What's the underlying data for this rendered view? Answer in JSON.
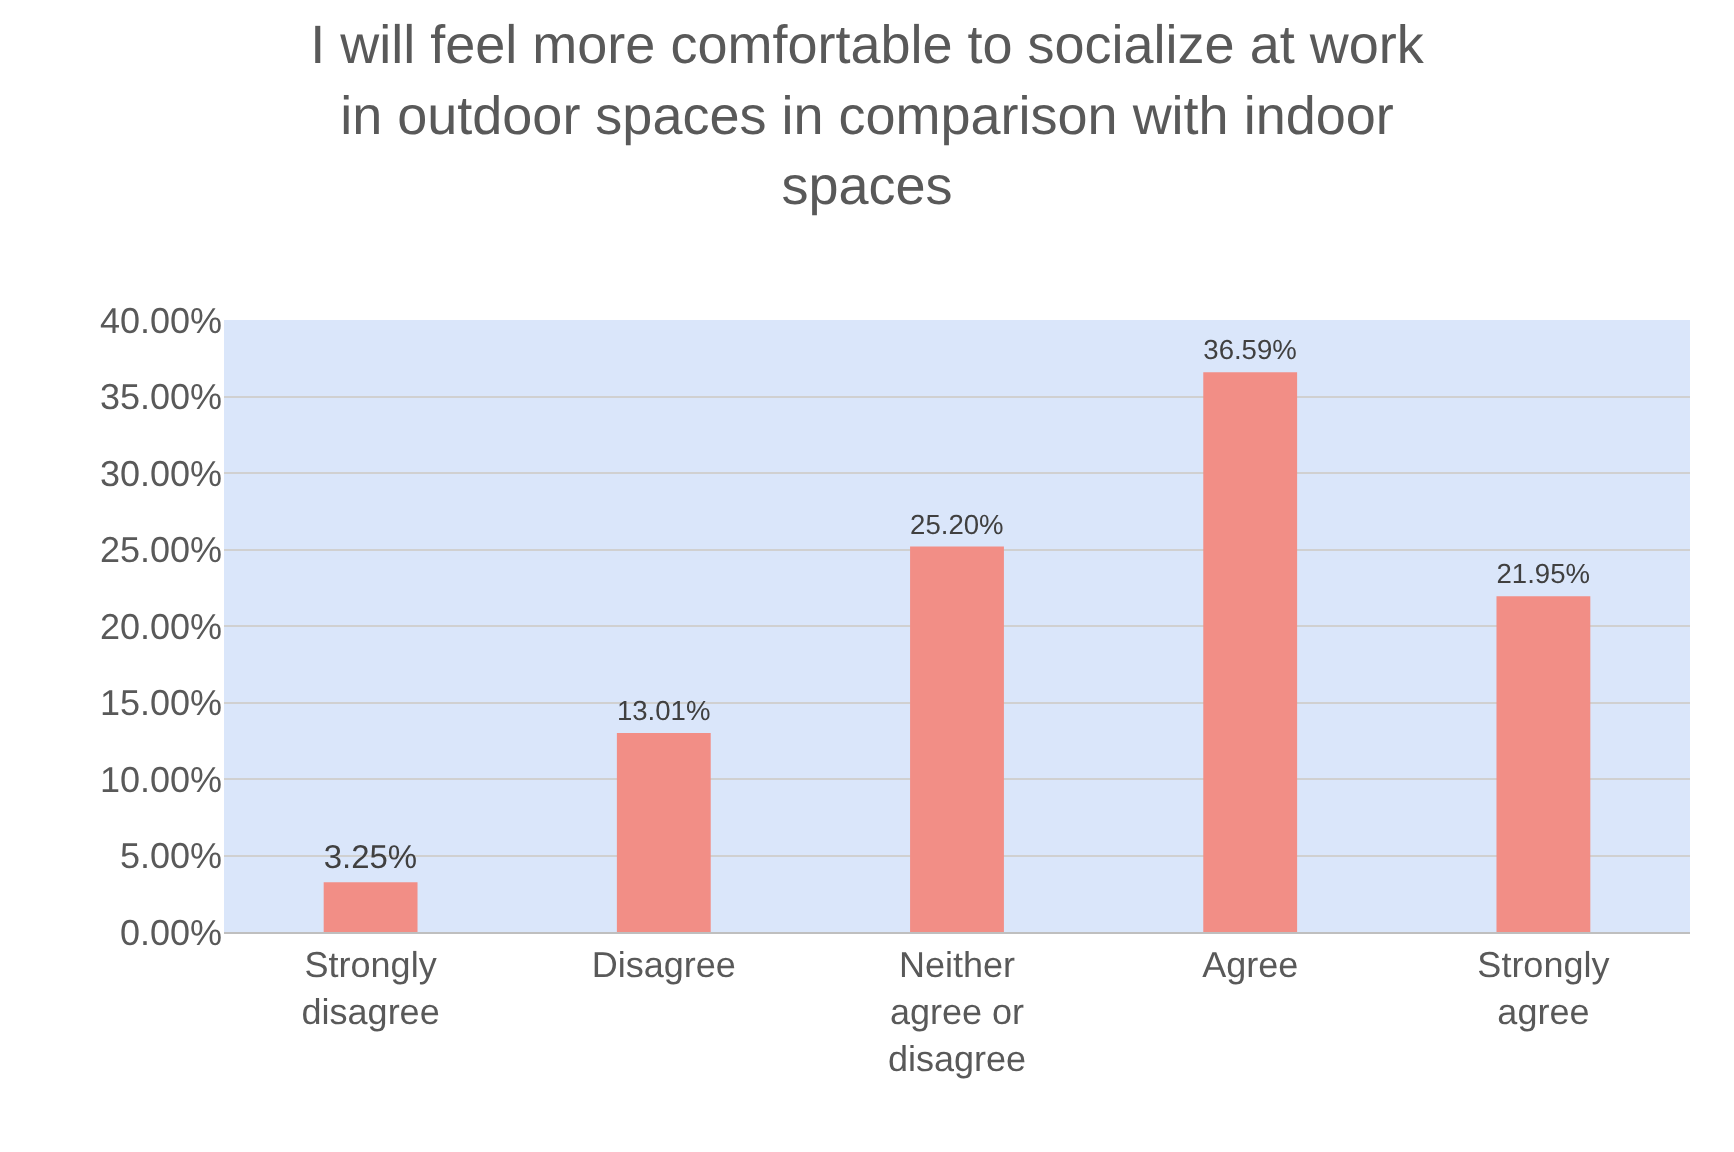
{
  "chart_data": {
    "type": "bar",
    "title": "I will feel more comfortable to socialize at work in outdoor spaces in comparison with indoor spaces",
    "categories": [
      "Strongly disagree",
      "Disagree",
      "Neither agree or disagree",
      "Agree",
      "Strongly agree"
    ],
    "values": [
      3.25,
      13.01,
      25.2,
      36.59,
      21.95
    ],
    "value_labels": [
      "3.25%",
      "13.01%",
      "25.20%",
      "36.59%",
      "21.95%"
    ],
    "color": "#f28e86",
    "ylim": [
      0,
      40
    ],
    "yticks": [
      {
        "value": 0,
        "label": "0.00%"
      },
      {
        "value": 5,
        "label": "5.00%"
      },
      {
        "value": 10,
        "label": "10.00%"
      },
      {
        "value": 15,
        "label": "15.00%"
      },
      {
        "value": 20,
        "label": "20.00%"
      },
      {
        "value": 25,
        "label": "25.00%"
      },
      {
        "value": 30,
        "label": "30.00%"
      },
      {
        "value": 35,
        "label": "35.00%"
      },
      {
        "value": 40,
        "label": "40.00%"
      }
    ],
    "grid": "y"
  }
}
